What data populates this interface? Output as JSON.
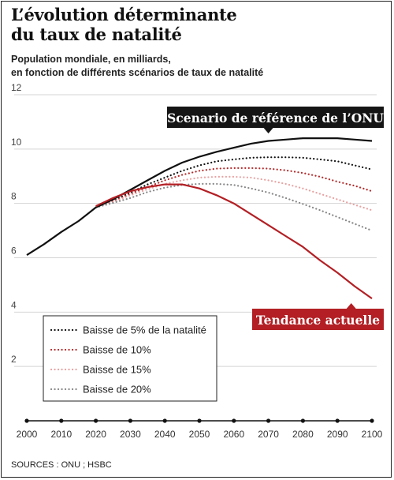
{
  "header": {
    "title_lines": [
      "L’évolution déterminante",
      "du taux de natalité"
    ],
    "subtitle_lines": [
      "Population mondiale, en milliards,",
      "en fonction de différents scénarios de taux de natalité"
    ]
  },
  "source": "SOURCES : ONU ; HSBC",
  "chart_data": {
    "type": "line",
    "title": "L’évolution déterminante du taux de natalité",
    "subtitle": "Population mondiale, en milliards, en fonction de différents scénarios de taux de natalité",
    "xlim": [
      2000,
      2100
    ],
    "ylim": [
      0,
      12
    ],
    "xticks": [
      2000,
      2010,
      2020,
      2030,
      2040,
      2050,
      2060,
      2070,
      2080,
      2090,
      2100
    ],
    "yticks": [
      2,
      4,
      6,
      8,
      10,
      12
    ],
    "grid": "horizontal",
    "legend_position": "bottom-left",
    "series": [
      {
        "name": "Scenario de référence de l’ONU",
        "style": "solid",
        "color": "#111111",
        "x": [
          2000,
          2005,
          2010,
          2015,
          2018,
          2020,
          2025,
          2030,
          2035,
          2040,
          2045,
          2050,
          2055,
          2060,
          2065,
          2070,
          2075,
          2080,
          2085,
          2090,
          2095,
          2100
        ],
        "y": [
          6.1,
          6.5,
          6.95,
          7.35,
          7.65,
          7.85,
          8.15,
          8.5,
          8.85,
          9.2,
          9.5,
          9.72,
          9.9,
          10.05,
          10.2,
          10.3,
          10.35,
          10.4,
          10.4,
          10.4,
          10.35,
          10.3
        ]
      },
      {
        "name": "Baisse de 5% de la natalité",
        "style": "dotted",
        "color": "#111111",
        "x": [
          2020,
          2025,
          2030,
          2035,
          2040,
          2045,
          2050,
          2055,
          2060,
          2065,
          2070,
          2075,
          2080,
          2085,
          2090,
          2095,
          2100
        ],
        "y": [
          7.85,
          8.1,
          8.4,
          8.7,
          8.95,
          9.2,
          9.4,
          9.55,
          9.62,
          9.68,
          9.7,
          9.7,
          9.68,
          9.62,
          9.55,
          9.4,
          9.25
        ]
      },
      {
        "name": "Baisse de 10%",
        "style": "dotted",
        "color": "#b32d2e",
        "x": [
          2020,
          2025,
          2030,
          2035,
          2040,
          2045,
          2050,
          2055,
          2060,
          2065,
          2070,
          2075,
          2080,
          2085,
          2090,
          2095,
          2100
        ],
        "y": [
          7.85,
          8.08,
          8.35,
          8.6,
          8.85,
          9.05,
          9.2,
          9.28,
          9.3,
          9.3,
          9.28,
          9.22,
          9.12,
          8.98,
          8.8,
          8.65,
          8.45
        ]
      },
      {
        "name": "Baisse de 15%",
        "style": "dotted",
        "color": "#e8a2a2",
        "x": [
          2020,
          2025,
          2030,
          2035,
          2040,
          2045,
          2050,
          2055,
          2060,
          2065,
          2070,
          2075,
          2080,
          2085,
          2090,
          2095,
          2100
        ],
        "y": [
          7.85,
          8.05,
          8.3,
          8.52,
          8.72,
          8.85,
          8.95,
          8.98,
          8.98,
          8.95,
          8.85,
          8.72,
          8.55,
          8.35,
          8.15,
          7.95,
          7.75
        ]
      },
      {
        "name": "Baisse de 20%",
        "style": "dotted",
        "color": "#888888",
        "x": [
          2020,
          2025,
          2030,
          2035,
          2040,
          2045,
          2050,
          2055,
          2060,
          2065,
          2070,
          2075,
          2080,
          2085,
          2090,
          2095,
          2100
        ],
        "y": [
          7.85,
          8.02,
          8.2,
          8.42,
          8.58,
          8.68,
          8.72,
          8.72,
          8.68,
          8.55,
          8.4,
          8.2,
          7.98,
          7.75,
          7.5,
          7.25,
          7.0
        ]
      },
      {
        "name": "Tendance actuelle",
        "style": "solid",
        "color": "#b31f24",
        "x": [
          2020,
          2025,
          2030,
          2035,
          2040,
          2045,
          2050,
          2055,
          2060,
          2065,
          2070,
          2075,
          2080,
          2085,
          2090,
          2095,
          2100
        ],
        "y": [
          7.9,
          8.2,
          8.45,
          8.6,
          8.7,
          8.7,
          8.55,
          8.3,
          8.0,
          7.6,
          7.2,
          6.8,
          6.4,
          5.9,
          5.45,
          4.95,
          4.5
        ]
      }
    ],
    "annotations": [
      {
        "text": "Scenario de référence de l’ONU",
        "series": "Scenario de référence de l’ONU",
        "style": "dark-box"
      },
      {
        "text": "Tendance actuelle",
        "series": "Tendance actuelle",
        "style": "red-box"
      }
    ],
    "legend": [
      {
        "label": "Baisse de 5% de la natalité",
        "color": "#111111"
      },
      {
        "label": "Baisse de 10%",
        "color": "#b32d2e"
      },
      {
        "label": "Baisse de 15%",
        "color": "#e8a2a2"
      },
      {
        "label": "Baisse de 20%",
        "color": "#888888"
      }
    ]
  }
}
